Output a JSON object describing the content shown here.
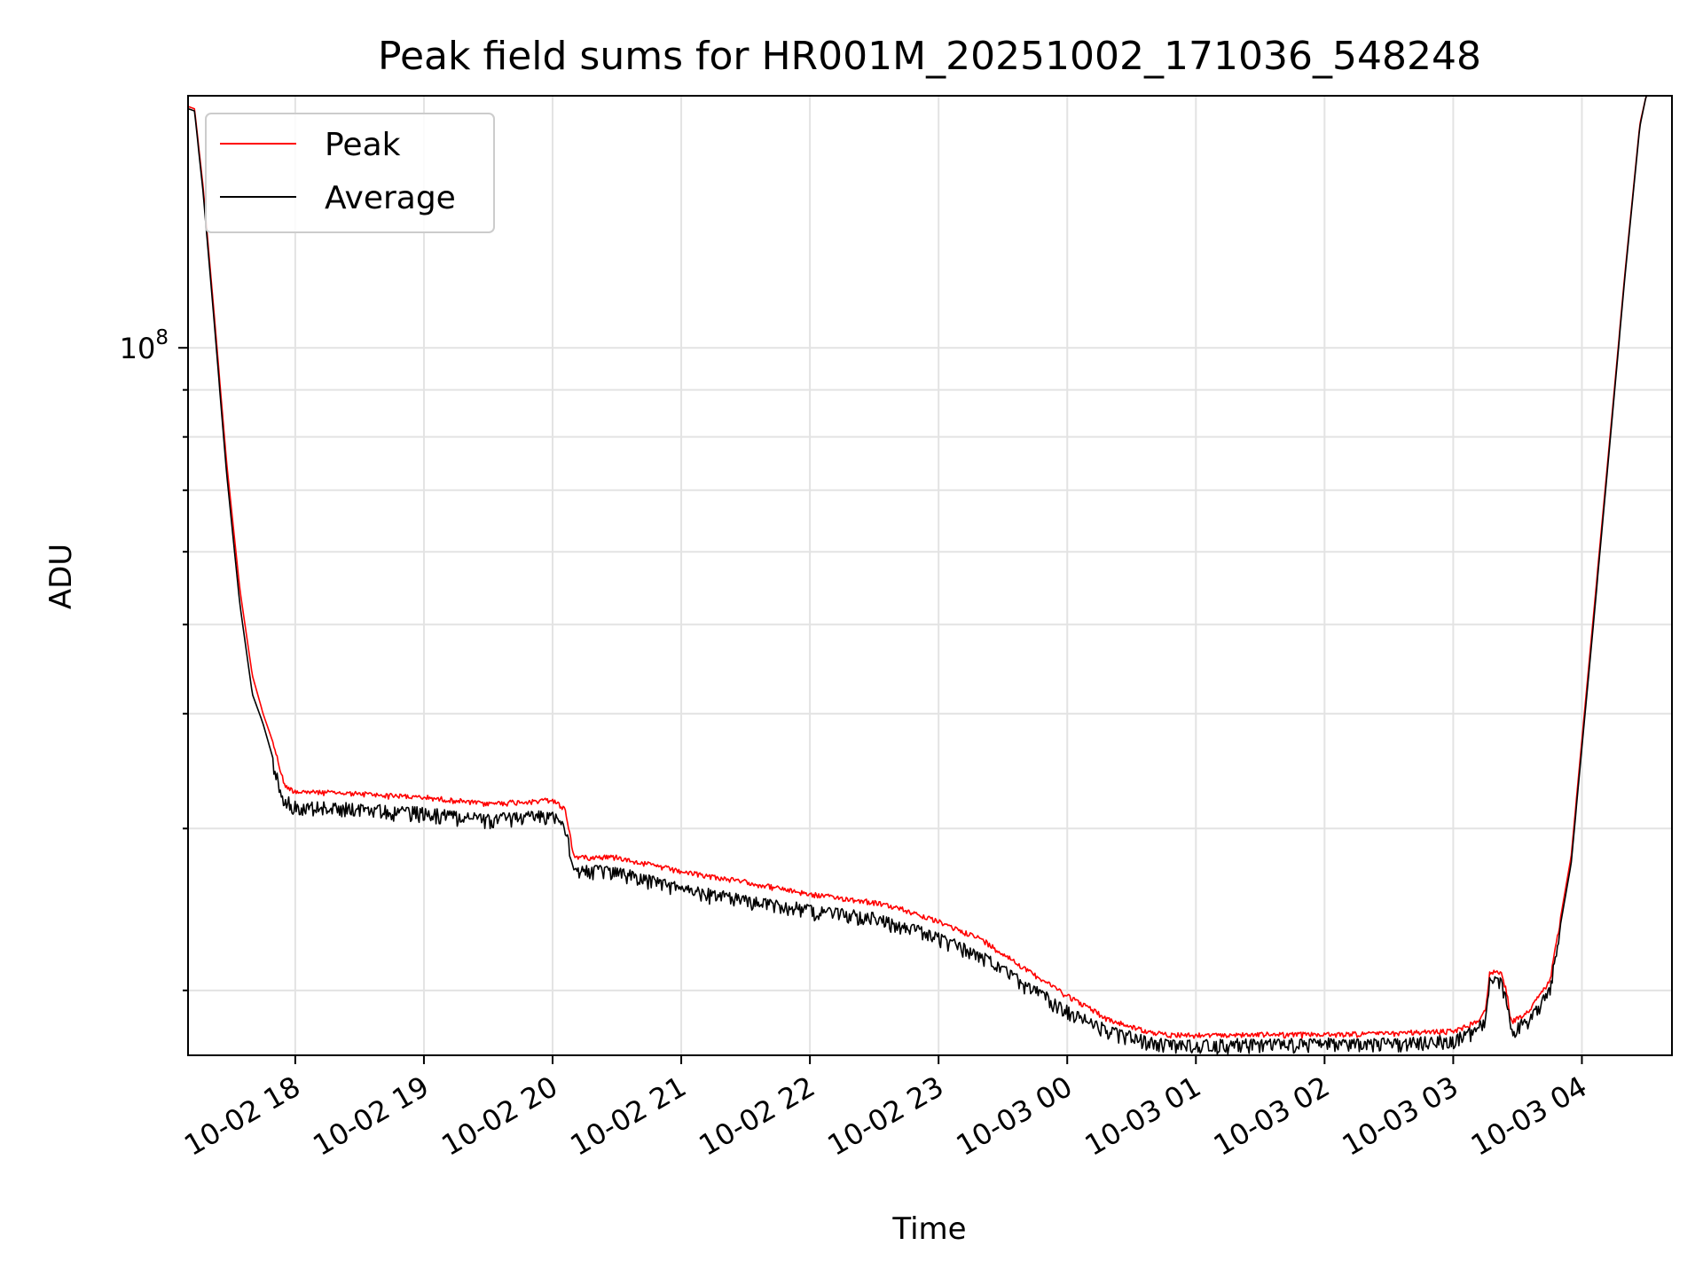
{
  "chart_data": {
    "type": "line",
    "title": "Peak field sums for HR001M_20251002_171036_548248",
    "xlabel": "Time",
    "ylabel": "ADU",
    "y_scale": "log",
    "grid": true,
    "legend_placement": "top-left",
    "x_tick_labels": [
      "10-02 18",
      "10-02 19",
      "10-02 20",
      "10-02 21",
      "10-02 22",
      "10-02 23",
      "10-03 00",
      "10-03 01",
      "10-03 02",
      "10-03 03",
      "10-03 04"
    ],
    "y_tick_labels": [
      {
        "base": "10",
        "exp": "8"
      }
    ],
    "xlim": [
      "2025-10-02 17:10",
      "2025-10-03 04:42"
    ],
    "ylim": [
      17000000,
      188000000
    ],
    "series": [
      {
        "name": "Peak",
        "color": "#ff0000",
        "points": [
          [
            "2025-10-02 17:10",
            183000000
          ],
          [
            "2025-10-02 17:13",
            182000000
          ],
          [
            "2025-10-02 17:17",
            150000000
          ],
          [
            "2025-10-02 17:22",
            110000000
          ],
          [
            "2025-10-02 17:28",
            75000000
          ],
          [
            "2025-10-02 17:34",
            55000000
          ],
          [
            "2025-10-02 17:40",
            44000000
          ],
          [
            "2025-10-02 17:45",
            40000000
          ],
          [
            "2025-10-02 17:50",
            37000000
          ],
          [
            "2025-10-02 17:55",
            33500000
          ],
          [
            "2025-10-02 18:00",
            33000000
          ],
          [
            "2025-10-02 18:30",
            32800000
          ],
          [
            "2025-10-02 19:00",
            32500000
          ],
          [
            "2025-10-02 19:30",
            32000000
          ],
          [
            "2025-10-02 20:00",
            32300000
          ],
          [
            "2025-10-02 20:06",
            31500000
          ],
          [
            "2025-10-02 20:10",
            28000000
          ],
          [
            "2025-10-02 20:30",
            28000000
          ],
          [
            "2025-10-02 21:00",
            27000000
          ],
          [
            "2025-10-02 21:30",
            26300000
          ],
          [
            "2025-10-02 22:00",
            25500000
          ],
          [
            "2025-10-02 22:30",
            25000000
          ],
          [
            "2025-10-02 22:45",
            24500000
          ],
          [
            "2025-10-02 23:00",
            23800000
          ],
          [
            "2025-10-02 23:20",
            22800000
          ],
          [
            "2025-10-02 23:40",
            21200000
          ],
          [
            "2025-10-03 00:00",
            19800000
          ],
          [
            "2025-10-03 00:20",
            18600000
          ],
          [
            "2025-10-03 00:40",
            18000000
          ],
          [
            "2025-10-03 01:00",
            17900000
          ],
          [
            "2025-10-03 01:30",
            17950000
          ],
          [
            "2025-10-03 02:00",
            17950000
          ],
          [
            "2025-10-03 02:30",
            18000000
          ],
          [
            "2025-10-03 03:00",
            18100000
          ],
          [
            "2025-10-03 03:10",
            18500000
          ],
          [
            "2025-10-03 03:15",
            19000000
          ],
          [
            "2025-10-03 03:17",
            21000000
          ],
          [
            "2025-10-03 03:22",
            21000000
          ],
          [
            "2025-10-03 03:25",
            20000000
          ],
          [
            "2025-10-03 03:27",
            18500000
          ],
          [
            "2025-10-03 03:35",
            19000000
          ],
          [
            "2025-10-03 03:45",
            20500000
          ],
          [
            "2025-10-03 03:55",
            28000000
          ],
          [
            "2025-10-03 04:05",
            50000000
          ],
          [
            "2025-10-03 04:12",
            75000000
          ],
          [
            "2025-10-03 04:20",
            120000000
          ],
          [
            "2025-10-03 04:27",
            175000000
          ],
          [
            "2025-10-03 04:30",
            188000000
          ],
          [
            "2025-10-03 04:42",
            188000000
          ]
        ]
      },
      {
        "name": "Average",
        "color": "#000000",
        "points": [
          [
            "2025-10-02 17:10",
            182000000
          ],
          [
            "2025-10-02 17:13",
            181000000
          ],
          [
            "2025-10-02 17:17",
            148000000
          ],
          [
            "2025-10-02 17:22",
            108000000
          ],
          [
            "2025-10-02 17:28",
            73000000
          ],
          [
            "2025-10-02 17:34",
            53000000
          ],
          [
            "2025-10-02 17:40",
            42000000
          ],
          [
            "2025-10-02 17:45",
            39000000
          ],
          [
            "2025-10-02 17:50",
            35500000
          ],
          [
            "2025-10-02 17:55",
            32500000
          ],
          [
            "2025-10-02 18:00",
            32000000
          ],
          [
            "2025-10-02 18:30",
            31800000
          ],
          [
            "2025-10-02 19:00",
            31500000
          ],
          [
            "2025-10-02 19:30",
            31000000
          ],
          [
            "2025-10-02 20:00",
            31300000
          ],
          [
            "2025-10-02 20:06",
            30500000
          ],
          [
            "2025-10-02 20:10",
            27200000
          ],
          [
            "2025-10-02 20:30",
            27200000
          ],
          [
            "2025-10-02 21:00",
            26000000
          ],
          [
            "2025-10-02 21:30",
            25300000
          ],
          [
            "2025-10-02 22:00",
            24700000
          ],
          [
            "2025-10-02 22:30",
            24200000
          ],
          [
            "2025-10-02 22:45",
            23700000
          ],
          [
            "2025-10-02 23:00",
            23000000
          ],
          [
            "2025-10-02 23:20",
            22000000
          ],
          [
            "2025-10-02 23:40",
            20500000
          ],
          [
            "2025-10-03 00:00",
            19200000
          ],
          [
            "2025-10-03 00:20",
            18200000
          ],
          [
            "2025-10-03 00:40",
            17700000
          ],
          [
            "2025-10-03 01:00",
            17600000
          ],
          [
            "2025-10-03 01:30",
            17650000
          ],
          [
            "2025-10-03 02:00",
            17650000
          ],
          [
            "2025-10-03 02:30",
            17700000
          ],
          [
            "2025-10-03 03:00",
            17800000
          ],
          [
            "2025-10-03 03:10",
            18200000
          ],
          [
            "2025-10-03 03:15",
            18700000
          ],
          [
            "2025-10-03 03:17",
            20600000
          ],
          [
            "2025-10-03 03:22",
            20600000
          ],
          [
            "2025-10-03 03:25",
            19600000
          ],
          [
            "2025-10-03 03:27",
            18200000
          ],
          [
            "2025-10-03 03:35",
            18700000
          ],
          [
            "2025-10-03 03:45",
            20200000
          ],
          [
            "2025-10-03 03:55",
            27500000
          ],
          [
            "2025-10-03 04:05",
            49000000
          ],
          [
            "2025-10-03 04:12",
            74000000
          ],
          [
            "2025-10-03 04:20",
            119000000
          ],
          [
            "2025-10-03 04:27",
            174000000
          ],
          [
            "2025-10-03 04:30",
            188000000
          ],
          [
            "2025-10-03 04:42",
            188000000
          ]
        ]
      }
    ]
  }
}
